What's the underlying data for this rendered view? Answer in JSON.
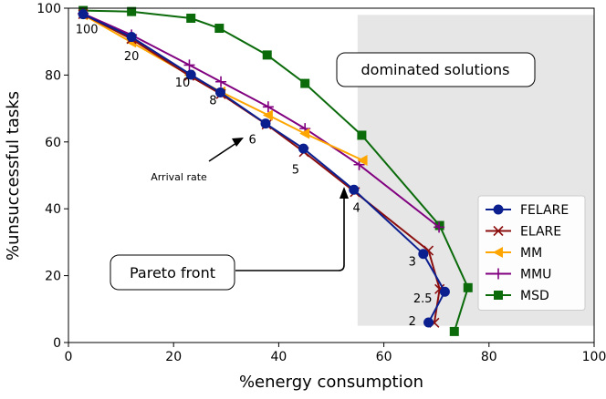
{
  "chart_data": {
    "type": "line",
    "xlabel": "%energy consumption",
    "ylabel": "%unsuccessful tasks",
    "xlim": [
      0,
      100
    ],
    "ylim": [
      0,
      100
    ],
    "xticks": [
      0,
      20,
      40,
      60,
      80,
      100
    ],
    "yticks": [
      0,
      20,
      40,
      60,
      80,
      100
    ],
    "series": [
      {
        "name": "FELARE",
        "color": "#0b1f8f",
        "marker": "circle",
        "points": [
          [
            2.8,
            98.2
          ],
          [
            12,
            91.4
          ],
          [
            23.3,
            80.1
          ],
          [
            28.9,
            74.8
          ],
          [
            37.5,
            65.5
          ],
          [
            44.7,
            58
          ],
          [
            54.3,
            45.7
          ],
          [
            67.5,
            26.5
          ],
          [
            71.6,
            15.2
          ],
          [
            68.5,
            6
          ]
        ]
      },
      {
        "name": "ELARE",
        "color": "#8b0f0f",
        "marker": "x",
        "points": [
          [
            2.8,
            98.2
          ],
          [
            12,
            90.8
          ],
          [
            23,
            79.8
          ],
          [
            29,
            74.3
          ],
          [
            37.7,
            65.2
          ],
          [
            44.8,
            57
          ],
          [
            54.5,
            45
          ],
          [
            68.5,
            27.5
          ],
          [
            70.6,
            16
          ],
          [
            69.6,
            5.9
          ]
        ]
      },
      {
        "name": "MM",
        "color": "#ffa500",
        "marker": "triangle-left",
        "points": [
          [
            2.8,
            98
          ],
          [
            12,
            89.8
          ],
          [
            23,
            80
          ],
          [
            29,
            75
          ],
          [
            38,
            68
          ],
          [
            45,
            62.5
          ],
          [
            56,
            54.5
          ]
        ]
      },
      {
        "name": "MMU",
        "color": "#800080",
        "marker": "plus",
        "points": [
          [
            2.8,
            98.4
          ],
          [
            12,
            92
          ],
          [
            23,
            83
          ],
          [
            29,
            78
          ],
          [
            38,
            70.5
          ],
          [
            45,
            64
          ],
          [
            55.3,
            53.2
          ],
          [
            70.5,
            34.5
          ]
        ]
      },
      {
        "name": "MSD",
        "color": "#0b6b0b",
        "marker": "square",
        "points": [
          [
            2.8,
            99.3
          ],
          [
            12,
            99
          ],
          [
            23.3,
            97
          ],
          [
            28.7,
            94
          ],
          [
            37.8,
            86
          ],
          [
            45,
            77.5
          ],
          [
            55.8,
            62
          ],
          [
            70.6,
            35
          ],
          [
            76,
            16.4
          ],
          [
            73.4,
            3.3
          ]
        ]
      }
    ],
    "dominated_region": {
      "x_from": 55,
      "y_from": 5,
      "x_to": 100,
      "y_to": 98,
      "fill": "#e6e6e6"
    },
    "point_labels": [
      {
        "text": "100",
        "x": 3.5,
        "y": 92.5
      },
      {
        "text": "20",
        "x": 12,
        "y": 84.5
      },
      {
        "text": "10",
        "x": 21.7,
        "y": 76.5
      },
      {
        "text": "8",
        "x": 27.5,
        "y": 71.2
      },
      {
        "text": "6",
        "x": 35,
        "y": 59.5
      },
      {
        "text": "5",
        "x": 43.2,
        "y": 50.6
      },
      {
        "text": "4",
        "x": 54.8,
        "y": 39.1
      },
      {
        "text": "3",
        "x": 65.4,
        "y": 23
      },
      {
        "text": "2.5",
        "x": 67.4,
        "y": 12
      },
      {
        "text": "2",
        "x": 65.4,
        "y": 5.2
      }
    ],
    "annotations": {
      "arrival_rate": "Arrival rate",
      "pareto_front": "Pareto front",
      "dominated_solutions": "dominated solutions"
    },
    "legend": {
      "position": "center-right"
    }
  }
}
